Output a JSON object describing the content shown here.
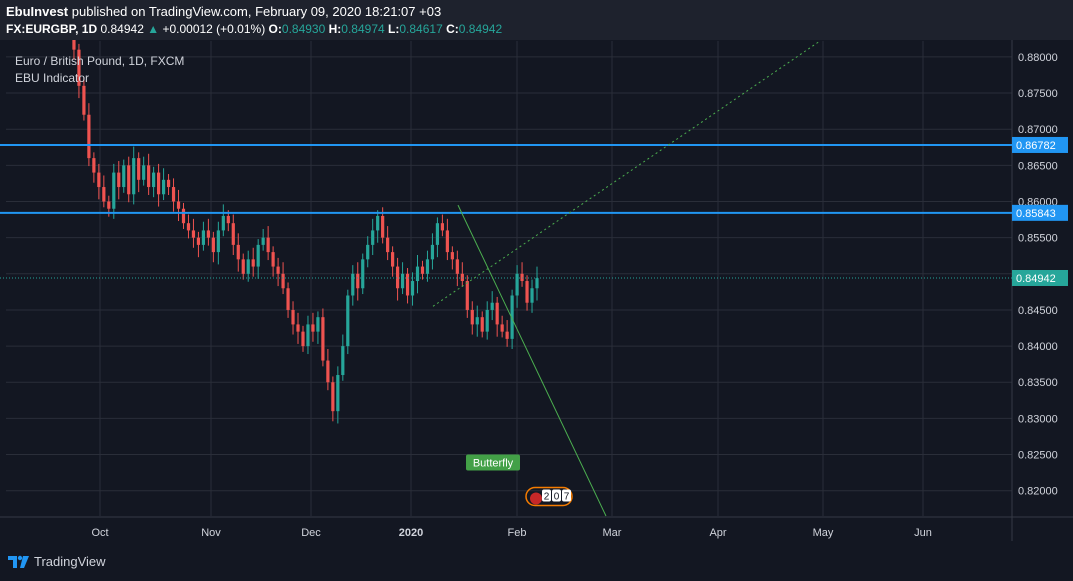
{
  "header": {
    "author": "EbuInvest",
    "published_text": "published on TradingView.com, February 09, 2020 18:21:07 +03",
    "symbol": "FX:EURGBP, 1D",
    "last": "0.84942",
    "change_arrow": "▲",
    "change": "+0.00012 (+0.01%)",
    "o_label": "O:",
    "o": "0.84930",
    "h_label": "H:",
    "h": "0.84974",
    "l_label": "L:",
    "l": "0.84617",
    "c_label": "C:",
    "c": "0.84942"
  },
  "legend": {
    "title": "Euro / British Pound, 1D, FXCM",
    "indicator": "EBU Indicator"
  },
  "footer": {
    "brand": "TradingView"
  },
  "colors": {
    "up": "#26a69a",
    "down": "#ef5350",
    "bg": "#131722",
    "hline": "#2196f3",
    "trend": "#4caf50"
  },
  "chart_data": {
    "type": "candlestick",
    "y_ticks": [
      "0.88000",
      "0.87500",
      "0.87000",
      "0.86500",
      "0.86000",
      "0.85500",
      "0.85000",
      "0.84500",
      "0.84000",
      "0.83500",
      "0.83000",
      "0.82500",
      "0.82000"
    ],
    "x_ticks": [
      "Oct",
      "Nov",
      "Dec",
      "2020",
      "Feb",
      "Mar",
      "Apr",
      "May",
      "Jun"
    ],
    "ylim": [
      0.8165,
      0.8822
    ],
    "price_labels": [
      {
        "value": 0.86782,
        "text": "0.86782",
        "kind": "hline"
      },
      {
        "value": 0.85843,
        "text": "0.85843",
        "kind": "hline"
      },
      {
        "value": 0.84942,
        "text": "0.84942",
        "kind": "last"
      }
    ],
    "annotations": [
      {
        "text": "Butterfly"
      },
      {
        "text": "2"
      },
      {
        "text": "0"
      },
      {
        "text": "7"
      }
    ],
    "closes": [
      0.8895,
      0.886,
      0.881,
      0.876,
      0.872,
      0.866,
      0.864,
      0.862,
      0.86,
      0.859,
      0.864,
      0.862,
      0.865,
      0.861,
      0.866,
      0.863,
      0.865,
      0.862,
      0.864,
      0.861,
      0.863,
      0.862,
      0.86,
      0.859,
      0.857,
      0.856,
      0.855,
      0.854,
      0.856,
      0.855,
      0.853,
      0.856,
      0.858,
      0.857,
      0.854,
      0.852,
      0.85,
      0.852,
      0.851,
      0.854,
      0.855,
      0.853,
      0.851,
      0.85,
      0.848,
      0.845,
      0.843,
      0.842,
      0.84,
      0.843,
      0.842,
      0.844,
      0.838,
      0.835,
      0.831,
      0.836,
      0.84,
      0.847,
      0.85,
      0.848,
      0.852,
      0.854,
      0.856,
      0.858,
      0.855,
      0.853,
      0.851,
      0.848,
      0.85,
      0.847,
      0.849,
      0.851,
      0.85,
      0.852,
      0.854,
      0.857,
      0.856,
      0.853,
      0.852,
      0.85,
      0.849,
      0.845,
      0.843,
      0.844,
      0.842,
      0.845,
      0.846,
      0.843,
      0.842,
      0.841,
      0.847,
      0.85,
      0.849,
      0.846,
      0.848,
      0.8494
    ]
  }
}
